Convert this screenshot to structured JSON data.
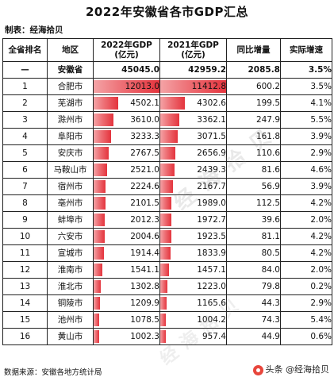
{
  "title": "2022年安徽省各市GDP汇总",
  "maker": "制表：经海拾贝",
  "headers": {
    "rank": "全省排名",
    "region": "地区",
    "gdp2022_line1": "2022年GDP",
    "gdp2022_line2": "(亿元)",
    "gdp2021_line1": "2021年GDP",
    "gdp2021_line2": "(亿元)",
    "increase": "同比增量",
    "growth": "实际增速"
  },
  "total": {
    "rank": "—",
    "region": "安徽省",
    "gdp2022": "45045.0",
    "gdp2021": "42959.2",
    "increase": "2085.8",
    "growth": "3.5%"
  },
  "rows": [
    {
      "rank": "1",
      "region": "合肥市",
      "gdp2022": "12013.0",
      "gdp2021": "11412.8",
      "increase": "600.2",
      "growth": "3.5%",
      "fill2022": 1.0,
      "fill2021": 1.0
    },
    {
      "rank": "2",
      "region": "芜湖市",
      "gdp2022": "4502.1",
      "gdp2021": "4302.6",
      "increase": "199.5",
      "growth": "4.1%",
      "fill2022": 0.375,
      "fill2021": 0.377
    },
    {
      "rank": "3",
      "region": "滁州市",
      "gdp2022": "3610.0",
      "gdp2021": "3362.1",
      "increase": "247.9",
      "growth": "5.5%",
      "fill2022": 0.301,
      "fill2021": 0.295
    },
    {
      "rank": "4",
      "region": "阜阳市",
      "gdp2022": "3233.3",
      "gdp2021": "3071.5",
      "increase": "161.8",
      "growth": "3.9%",
      "fill2022": 0.269,
      "fill2021": 0.269
    },
    {
      "rank": "5",
      "region": "安庆市",
      "gdp2022": "2767.5",
      "gdp2021": "2656.9",
      "increase": "110.6",
      "growth": "2.9%",
      "fill2022": 0.23,
      "fill2021": 0.233
    },
    {
      "rank": "6",
      "region": "马鞍山市",
      "gdp2022": "2521.0",
      "gdp2021": "2439.3",
      "increase": "81.6",
      "growth": "4.6%",
      "fill2022": 0.21,
      "fill2021": 0.214
    },
    {
      "rank": "7",
      "region": "宿州市",
      "gdp2022": "2224.6",
      "gdp2021": "2167.7",
      "increase": "56.9",
      "growth": "3.9%",
      "fill2022": 0.185,
      "fill2021": 0.19
    },
    {
      "rank": "8",
      "region": "亳州市",
      "gdp2022": "2101.5",
      "gdp2021": "1989.0",
      "increase": "112.5",
      "growth": "4.2%",
      "fill2022": 0.175,
      "fill2021": 0.174
    },
    {
      "rank": "9",
      "region": "蚌埠市",
      "gdp2022": "2012.3",
      "gdp2021": "1972.7",
      "increase": "39.6",
      "growth": "2.0%",
      "fill2022": 0.168,
      "fill2021": 0.173
    },
    {
      "rank": "10",
      "region": "六安市",
      "gdp2022": "2004.6",
      "gdp2021": "1923.5",
      "increase": "81.1",
      "growth": "4.2%",
      "fill2022": 0.167,
      "fill2021": 0.169
    },
    {
      "rank": "11",
      "region": "宣城市",
      "gdp2022": "1914.4",
      "gdp2021": "1833.9",
      "increase": "80.5",
      "growth": "4.2%",
      "fill2022": 0.159,
      "fill2021": 0.161
    },
    {
      "rank": "12",
      "region": "淮南市",
      "gdp2022": "1541.1",
      "gdp2021": "1457.1",
      "increase": "84.0",
      "growth": "2.0%",
      "fill2022": 0.128,
      "fill2021": 0.128
    },
    {
      "rank": "13",
      "region": "淮北市",
      "gdp2022": "1302.8",
      "gdp2021": "1223.0",
      "increase": "79.8",
      "growth": "0.2%",
      "fill2022": 0.108,
      "fill2021": 0.107
    },
    {
      "rank": "14",
      "region": "铜陵市",
      "gdp2022": "1209.9",
      "gdp2021": "1165.6",
      "increase": "44.3",
      "growth": "2.9%",
      "fill2022": 0.101,
      "fill2021": 0.102
    },
    {
      "rank": "15",
      "region": "池州市",
      "gdp2022": "1078.5",
      "gdp2021": "1004.2",
      "increase": "74.3",
      "growth": "5.4%",
      "fill2022": 0.09,
      "fill2021": 0.088
    },
    {
      "rank": "16",
      "region": "黄山市",
      "gdp2022": "1002.3",
      "gdp2021": "957.4",
      "increase": "44.9",
      "growth": "0.6%",
      "fill2022": 0.083,
      "fill2021": 0.084
    }
  ],
  "watermark": "经海拾贝",
  "source": "数据来源：安徽各地方统计局",
  "credit": "头条 @经海拾贝",
  "colors": {
    "bar_light": "#f4a3a6",
    "bar_dark": "#e4343d"
  }
}
